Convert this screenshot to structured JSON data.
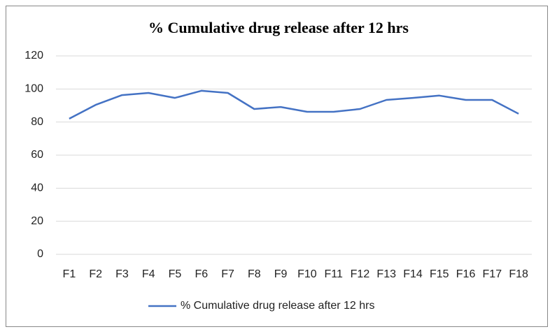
{
  "chart_data": {
    "type": "line",
    "title": "% Cumulative drug release after 12 hrs",
    "categories": [
      "F1",
      "F2",
      "F3",
      "F4",
      "F5",
      "F6",
      "F7",
      "F8",
      "F9",
      "F10",
      "F11",
      "F12",
      "F13",
      "F14",
      "F15",
      "F16",
      "F17",
      "F18"
    ],
    "series": [
      {
        "name": "% Cumulative drug release after 12 hrs",
        "color": "#4472c4",
        "values": [
          82,
          90.4,
          96.3,
          97.6,
          94.6,
          98.9,
          97.6,
          87.9,
          89.1,
          86.2,
          86.2,
          87.9,
          93.4,
          94.6,
          96,
          93.4,
          93.4,
          85
        ]
      }
    ],
    "ylim": [
      0,
      120
    ],
    "yticks": [
      0,
      20,
      40,
      60,
      80,
      100,
      120
    ],
    "grid": true,
    "legend": "bottom"
  }
}
